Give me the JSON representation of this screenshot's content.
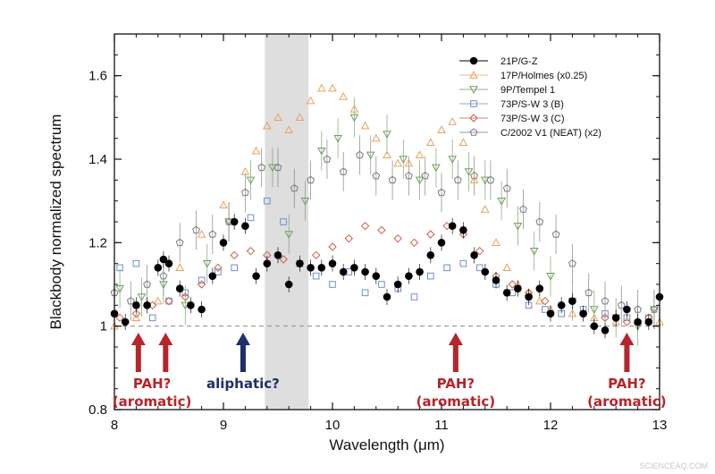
{
  "credit": "SCIENCEAQ.COM",
  "chart_data": {
    "type": "scatter",
    "xlabel": "Wavelength (μm)",
    "ylabel": "Blackbody normalized spectrum",
    "xlim": [
      8,
      13
    ],
    "ylim": [
      0.8,
      1.7
    ],
    "x_ticks": [
      "8",
      "9",
      "10",
      "11",
      "12",
      "13"
    ],
    "y_ticks": [
      "0.8",
      "1",
      "1.2",
      "1.4",
      "1.6"
    ],
    "x_tick_values": [
      8,
      9,
      10,
      11,
      12,
      13
    ],
    "y_tick_values": [
      0.8,
      1.0,
      1.2,
      1.4,
      1.6
    ],
    "reference_line": 1.0,
    "shaded_band": [
      9.38,
      9.78
    ],
    "shaded_color": "#dedede",
    "legend_position": "top-right",
    "series": [
      {
        "name": "21P/G-Z",
        "color": "#000000",
        "marker": "filled-circle",
        "error_bars": true,
        "x": [
          8.0,
          8.1,
          8.2,
          8.3,
          8.4,
          8.45,
          8.5,
          8.6,
          8.7,
          8.8,
          8.9,
          9.0,
          9.1,
          9.2,
          9.3,
          9.4,
          9.5,
          9.6,
          9.7,
          9.8,
          9.9,
          10.0,
          10.1,
          10.2,
          10.3,
          10.4,
          10.5,
          10.6,
          10.7,
          10.8,
          10.9,
          11.0,
          11.1,
          11.2,
          11.3,
          11.4,
          11.5,
          11.6,
          11.7,
          11.8,
          11.9,
          12.0,
          12.1,
          12.2,
          12.3,
          12.4,
          12.5,
          12.6,
          12.7,
          12.8,
          12.9,
          13.0
        ],
        "y": [
          1.03,
          1.01,
          1.05,
          1.05,
          1.14,
          1.16,
          1.15,
          1.09,
          1.05,
          1.04,
          1.12,
          1.2,
          1.25,
          1.24,
          1.12,
          1.15,
          1.17,
          1.1,
          1.15,
          1.14,
          1.14,
          1.15,
          1.13,
          1.14,
          1.13,
          1.12,
          1.07,
          1.1,
          1.12,
          1.13,
          1.17,
          1.2,
          1.24,
          1.23,
          1.17,
          1.13,
          1.11,
          1.08,
          1.09,
          1.07,
          1.09,
          1.03,
          1.05,
          1.06,
          1.03,
          1.0,
          0.99,
          1.02,
          1.04,
          1.01,
          1.01,
          1.07
        ]
      },
      {
        "name": "17P/Holmes (x0.25)",
        "color": "#e8a35a",
        "marker": "open-triangle-up",
        "error_bars": false,
        "x": [
          8.0,
          8.2,
          8.4,
          8.6,
          8.8,
          9.0,
          9.2,
          9.3,
          9.4,
          9.5,
          9.6,
          9.7,
          9.8,
          9.9,
          10.0,
          10.1,
          10.2,
          10.3,
          10.4,
          10.5,
          10.6,
          10.7,
          10.8,
          10.9,
          11.0,
          11.1,
          11.2,
          11.3,
          11.4,
          11.5,
          11.6,
          11.7,
          11.8,
          11.9,
          12.0,
          12.2,
          12.4,
          12.6,
          12.8,
          13.0
        ],
        "y": [
          1.0,
          1.02,
          1.06,
          1.14,
          1.22,
          1.29,
          1.37,
          1.42,
          1.48,
          1.5,
          1.47,
          1.5,
          1.54,
          1.57,
          1.57,
          1.55,
          1.52,
          1.48,
          1.45,
          1.41,
          1.39,
          1.39,
          1.41,
          1.44,
          1.47,
          1.49,
          1.44,
          1.35,
          1.28,
          1.2,
          1.14,
          1.1,
          1.08,
          1.06,
          1.04,
          1.03,
          1.02,
          1.01,
          1.01,
          1.01
        ]
      },
      {
        "name": "9P/Tempel 1",
        "color": "#6f9e5e",
        "marker": "open-triangle-down",
        "error_bars": true,
        "x": [
          8.05,
          8.25,
          8.45,
          8.65,
          8.85,
          9.05,
          9.25,
          9.45,
          9.6,
          9.75,
          9.9,
          10.05,
          10.2,
          10.35,
          10.5,
          10.65,
          10.8,
          10.95,
          11.1,
          11.25,
          11.4,
          11.55,
          11.7,
          11.85,
          12.0,
          12.2,
          12.4,
          12.6,
          12.8,
          12.95
        ],
        "y": [
          1.09,
          1.07,
          1.1,
          1.05,
          1.15,
          1.25,
          1.35,
          1.38,
          1.22,
          1.3,
          1.42,
          1.45,
          1.5,
          1.41,
          1.46,
          1.4,
          1.35,
          1.38,
          1.4,
          1.37,
          1.35,
          1.3,
          1.24,
          1.18,
          1.12,
          1.06,
          1.04,
          1.02,
          1.0,
          1.04
        ]
      },
      {
        "name": "73P/S-W 3 (B)",
        "color": "#6e8fca",
        "marker": "open-square",
        "error_bars": false,
        "x": [
          8.05,
          8.2,
          8.35,
          8.5,
          8.65,
          8.8,
          8.95,
          9.1,
          9.25,
          9.4,
          9.55,
          9.7,
          9.85,
          10.0,
          10.15,
          10.3,
          10.45,
          10.6,
          10.75,
          10.9,
          11.05,
          11.2,
          11.35,
          11.5,
          11.65,
          11.8,
          11.95,
          12.1,
          12.3,
          12.5,
          12.7,
          12.9
        ],
        "y": [
          1.14,
          1.15,
          1.02,
          1.06,
          1.08,
          1.11,
          1.13,
          1.14,
          1.26,
          1.3,
          1.25,
          1.15,
          1.12,
          1.1,
          1.13,
          1.08,
          1.1,
          1.09,
          1.07,
          1.12,
          1.14,
          1.15,
          1.14,
          1.1,
          1.08,
          1.05,
          1.04,
          1.03,
          1.04,
          1.03,
          1.02,
          1.02
        ]
      },
      {
        "name": "73P/S-W 3 (C)",
        "color": "#c8604a",
        "marker": "open-diamond",
        "error_bars": false,
        "x": [
          8.05,
          8.2,
          8.35,
          8.5,
          8.65,
          8.8,
          8.95,
          9.1,
          9.25,
          9.4,
          9.55,
          9.7,
          9.85,
          10.0,
          10.15,
          10.3,
          10.45,
          10.6,
          10.75,
          10.9,
          11.05,
          11.2,
          11.35,
          11.5,
          11.65,
          11.8,
          11.95,
          12.1,
          12.3,
          12.5,
          12.7,
          12.9
        ],
        "y": [
          1.02,
          1.03,
          1.05,
          1.06,
          1.07,
          1.1,
          1.14,
          1.17,
          1.18,
          1.17,
          1.16,
          1.15,
          1.17,
          1.19,
          1.21,
          1.24,
          1.23,
          1.21,
          1.2,
          1.22,
          1.24,
          1.22,
          1.18,
          1.12,
          1.1,
          1.08,
          1.06,
          1.05,
          1.03,
          1.02,
          1.01,
          1.02
        ]
      },
      {
        "name": "C/2002 V1 (NEAT) (x2)",
        "color": "#7a7a7a",
        "marker": "open-pentagon",
        "error_bars": true,
        "x": [
          8.0,
          8.15,
          8.3,
          8.45,
          8.6,
          8.75,
          8.9,
          9.05,
          9.2,
          9.35,
          9.5,
          9.65,
          9.8,
          9.95,
          10.1,
          10.25,
          10.4,
          10.55,
          10.7,
          10.85,
          11.0,
          11.15,
          11.3,
          11.45,
          11.6,
          11.75,
          11.9,
          12.05,
          12.2,
          12.35,
          12.5,
          12.65,
          12.8,
          12.95
        ],
        "y": [
          1.08,
          1.06,
          1.1,
          1.12,
          1.2,
          1.23,
          1.22,
          1.25,
          1.32,
          1.38,
          1.38,
          1.33,
          1.35,
          1.4,
          1.37,
          1.41,
          1.36,
          1.35,
          1.36,
          1.36,
          1.32,
          1.35,
          1.36,
          1.35,
          1.33,
          1.28,
          1.25,
          1.22,
          1.15,
          1.08,
          1.06,
          1.05,
          1.04,
          1.04
        ]
      }
    ],
    "annotations": [
      {
        "id": "pah1",
        "text": "PAH?",
        "text2": "(aromatic)",
        "arrow_x": [
          8.22,
          8.47
        ],
        "color": "#b5252a"
      },
      {
        "id": "aliphatic",
        "text": "aliphatic?",
        "text2": "",
        "arrow_x": [
          9.18
        ],
        "color": "#1e2f6b"
      },
      {
        "id": "pah2",
        "text": "PAH?",
        "text2": "(aromatic)",
        "arrow_x": [
          11.13
        ],
        "color": "#b5252a"
      },
      {
        "id": "pah3",
        "text": "PAH?",
        "text2": "(aromatic)",
        "arrow_x": [
          12.7
        ],
        "color": "#b5252a"
      }
    ]
  }
}
